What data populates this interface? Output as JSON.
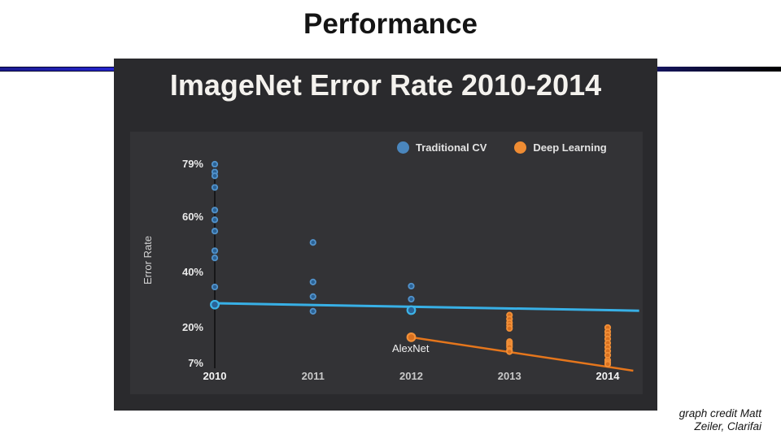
{
  "slide": {
    "title": "Performance",
    "credit_line1": "graph credit Matt",
    "credit_line2": "Zeiler, Clarifai"
  },
  "chart_data": {
    "type": "scatter",
    "title": "ImageNet Error Rate 2010-2014",
    "ylabel": "Error Rate",
    "xlabel": "",
    "grid": false,
    "legend_position": "top",
    "background": "#2a2a2d",
    "panel_background": "#333336",
    "yticks": [
      {
        "label": "79%",
        "value": 79
      },
      {
        "label": "60%",
        "value": 60
      },
      {
        "label": "40%",
        "value": 40
      },
      {
        "label": "20%",
        "value": 20
      },
      {
        "label": "7%",
        "value": 7
      }
    ],
    "xticks": [
      {
        "label": "2010",
        "value": 2010,
        "bright": true
      },
      {
        "label": "2011",
        "value": 2011,
        "bright": false
      },
      {
        "label": "2012",
        "value": 2012,
        "bright": false
      },
      {
        "label": "2013",
        "value": 2013,
        "bright": false
      },
      {
        "label": "2014",
        "value": 2014,
        "bright": true
      }
    ],
    "ylim": [
      4,
      82
    ],
    "xlim": [
      2010,
      2014.3
    ],
    "legend": [
      {
        "label": "Traditional CV",
        "color": "#4a86bd"
      },
      {
        "label": "Deep Learning",
        "color": "#ef8c33"
      }
    ],
    "series": [
      {
        "name": "Traditional CV",
        "dot_fill": "#2b6295",
        "dot_stroke": "#5293cc",
        "big_dot_stroke": "#3cb4e8",
        "points": [
          {
            "x": 2010,
            "y": 79.0
          },
          {
            "x": 2010,
            "y": 76.2
          },
          {
            "x": 2010,
            "y": 74.8
          },
          {
            "x": 2010,
            "y": 70.6
          },
          {
            "x": 2010,
            "y": 62.4
          },
          {
            "x": 2010,
            "y": 58.9
          },
          {
            "x": 2010,
            "y": 54.8
          },
          {
            "x": 2010,
            "y": 47.7
          },
          {
            "x": 2010,
            "y": 45.1
          },
          {
            "x": 2010,
            "y": 34.6
          },
          {
            "x": 2010,
            "y": 28.2,
            "big": true
          },
          {
            "x": 2011,
            "y": 50.7
          },
          {
            "x": 2011,
            "y": 36.4
          },
          {
            "x": 2011,
            "y": 31.1
          },
          {
            "x": 2011,
            "y": 25.8
          },
          {
            "x": 2012,
            "y": 34.9
          },
          {
            "x": 2012,
            "y": 30.2
          },
          {
            "x": 2012,
            "y": 26.2,
            "big": true
          }
        ]
      },
      {
        "name": "Deep Learning",
        "dot_fill": "#d8701f",
        "dot_stroke": "#f29038",
        "big_dot_stroke": "#f29038",
        "points": [
          {
            "x": 2012,
            "y": 16.4,
            "big": true,
            "annotation": "AlexNet"
          },
          {
            "x": 2013,
            "y": 24.4
          },
          {
            "x": 2013,
            "y": 23.0
          },
          {
            "x": 2013,
            "y": 21.7
          },
          {
            "x": 2013,
            "y": 20.7
          },
          {
            "x": 2013,
            "y": 19.6
          },
          {
            "x": 2013,
            "y": 14.8
          },
          {
            "x": 2013,
            "y": 14.2
          },
          {
            "x": 2013,
            "y": 13.5
          },
          {
            "x": 2013,
            "y": 12.9
          },
          {
            "x": 2013,
            "y": 11.7
          },
          {
            "x": 2013,
            "y": 11.2
          },
          {
            "x": 2014,
            "y": 19.9
          },
          {
            "x": 2014,
            "y": 18.4
          },
          {
            "x": 2014,
            "y": 17.2
          },
          {
            "x": 2014,
            "y": 15.8
          },
          {
            "x": 2014,
            "y": 14.3
          },
          {
            "x": 2014,
            "y": 12.8
          },
          {
            "x": 2014,
            "y": 11.4
          },
          {
            "x": 2014,
            "y": 9.9
          },
          {
            "x": 2014,
            "y": 8.1
          },
          {
            "x": 2014,
            "y": 7.3
          },
          {
            "x": 2014,
            "y": 6.7
          }
        ]
      }
    ],
    "trendlines": [
      {
        "series": "Traditional CV",
        "color": "#38b0e6",
        "width": 3,
        "x1": 2010,
        "y1": 28.7,
        "x2": 2014.32,
        "y2": 26.0
      },
      {
        "series": "Deep Learning",
        "color": "#e5761c",
        "width": 2.5,
        "x1": 2012,
        "y1": 16.4,
        "x2": 2014.26,
        "y2": 4.3
      }
    ],
    "annotations": [
      {
        "text": "AlexNet",
        "x": 2012,
        "y": 16.4,
        "placement": "below-left"
      }
    ]
  }
}
